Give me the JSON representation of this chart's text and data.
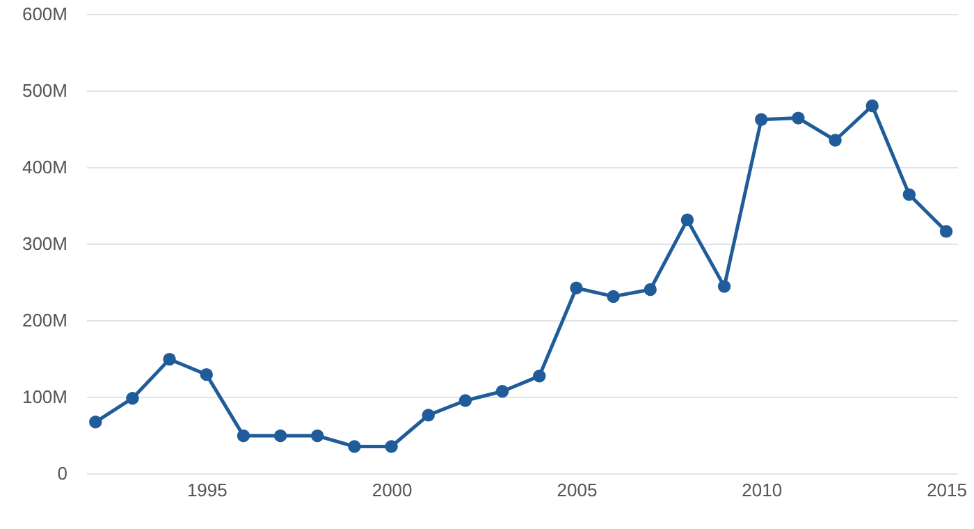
{
  "chart_data": {
    "type": "line",
    "x": [
      1992,
      1993,
      1994,
      1995,
      1996,
      1997,
      1998,
      1999,
      2000,
      2001,
      2002,
      2003,
      2004,
      2005,
      2006,
      2007,
      2008,
      2009,
      2010,
      2011,
      2012,
      2013,
      2014,
      2015
    ],
    "series": [
      {
        "color": "#1f5c99",
        "values": [
          67,
          98,
          149,
          129,
          49,
          49,
          49,
          35,
          35,
          76,
          95,
          107,
          127,
          242,
          231,
          240,
          331,
          244,
          462,
          464,
          435,
          480,
          364,
          316
        ]
      }
    ],
    "xlim": [
      1991.75,
      2015.3
    ],
    "xticks": [
      1995,
      2000,
      2005,
      2010,
      2015
    ],
    "ylim": [
      0,
      600
    ],
    "yticks": [
      {
        "value": 0,
        "label": "0"
      },
      {
        "value": 100,
        "label": "100M"
      },
      {
        "value": 200,
        "label": "200M"
      },
      {
        "value": 300,
        "label": "300M"
      },
      {
        "value": 400,
        "label": "400M"
      },
      {
        "value": 500,
        "label": "500M"
      },
      {
        "value": 600,
        "label": "600M"
      }
    ],
    "grid": "y",
    "marker": "circle",
    "line_style": "solid"
  }
}
